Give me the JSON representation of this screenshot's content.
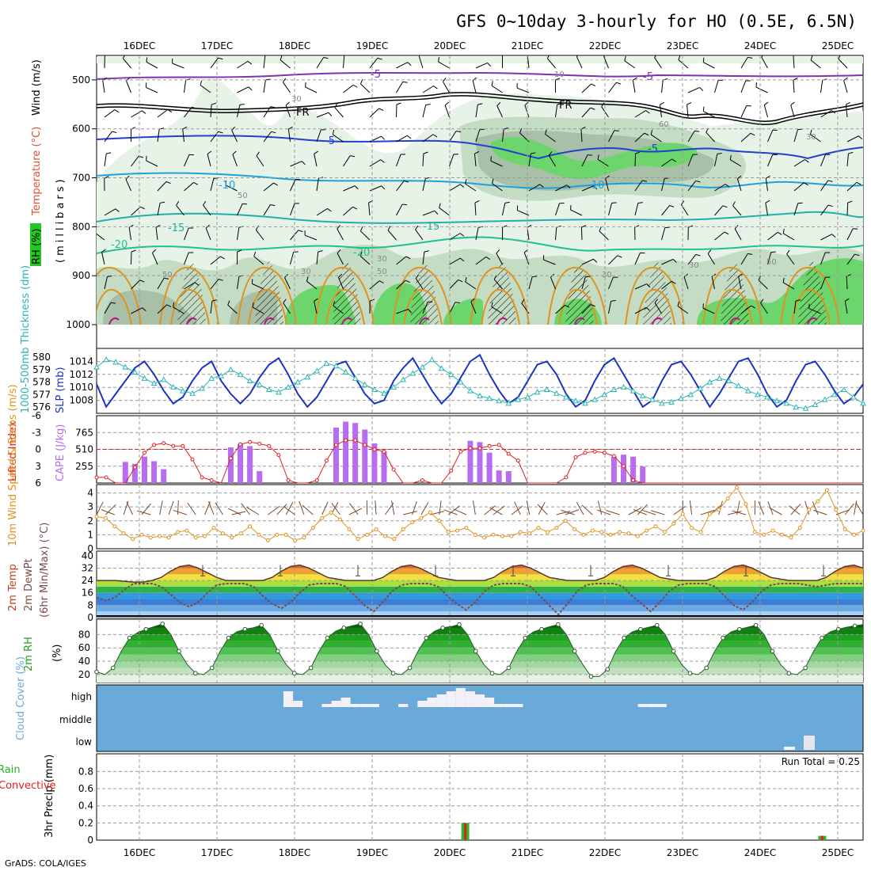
{
  "title": "GFS 0~10day 3-hourly for HO (0.5E, 6.5N)",
  "footer": "GrADS: COLA/IGES",
  "dates_top": [
    "16DEC",
    "17DEC",
    "18DEC",
    "19DEC",
    "20DEC",
    "21DEC",
    "22DEC",
    "23DEC",
    "24DEC",
    "25DEC"
  ],
  "dates_bottom": [
    "16DEC",
    "17DEC",
    "18DEC",
    "19DEC",
    "20DEC",
    "21DEC",
    "22DEC",
    "23DEC",
    "24DEC",
    "25DEC"
  ],
  "colors": {
    "rh1": "#e8f3e8",
    "rh2": "#c4dcc4",
    "rh3": "#a8c0a8",
    "rh4": "#6cd66c",
    "rh5": "#22c822",
    "slp": "#1a34c0",
    "thick": "#2ab4b4",
    "li": "#e02020",
    "cape": "#b86cf0",
    "wind": "#e0921e",
    "dew": "#7a4a4a",
    "cloud": "#6aaad8"
  },
  "chart_data": [
    {
      "panel": "cross-section",
      "type": "heatmap",
      "ylabel_rh": "RH (%)",
      "ylabel_temp": "Temperature (°C)",
      "ylabel_wind": "Wind (m/s)",
      "ylabel_units": "(millibars)",
      "yticks": [
        "500",
        "600",
        "700",
        "800",
        "900",
        "1000"
      ],
      "ylim": [
        1000,
        450
      ],
      "temp_labels": [
        "-5",
        "-5",
        "-5",
        "-5",
        "-10",
        "-10",
        "-15",
        "-15",
        "-20",
        "-20"
      ],
      "freezing_labels": [
        "FR",
        "FR"
      ],
      "rh_labels": [
        "10",
        "30",
        "50",
        "30",
        "30",
        "50",
        "50",
        "30",
        "30",
        "50",
        "60",
        "30"
      ]
    },
    {
      "panel": "slp-thickness",
      "type": "line",
      "ylabel_left": "1000-500mb Thickness (dm)",
      "ylabel_right": "SLP (mb)",
      "thick_ticks": [
        "580",
        "579",
        "578",
        "577",
        "576"
      ],
      "slp_ticks": [
        "1014",
        "1012",
        "1010",
        "1008"
      ],
      "slp_values": [
        1010.5,
        1007,
        1009,
        1011,
        1013,
        1014,
        1012,
        1009.5,
        1007.5,
        1008.5,
        1011,
        1013,
        1014,
        1011,
        1009,
        1007.5,
        1009,
        1011.5,
        1013.5,
        1014.5,
        1012,
        1009,
        1007,
        1008.5,
        1011,
        1013.5,
        1014,
        1011.5,
        1009,
        1007.5,
        1008,
        1011,
        1013,
        1014.5,
        1012,
        1009.5,
        1007.5,
        1009,
        1011.5,
        1014,
        1015,
        1012,
        1009.5,
        1007.5,
        1008.5,
        1011,
        1013.5,
        1014,
        1012,
        1009,
        1007,
        1008,
        1011,
        1013.5,
        1014.5,
        1012,
        1009.5,
        1007,
        1008,
        1011,
        1013.5,
        1014,
        1012,
        1009.5,
        1007,
        1009,
        1011.5,
        1014,
        1014.5,
        1012,
        1009,
        1007,
        1008,
        1011,
        1013.5,
        1014,
        1012,
        1009.5,
        1007.5,
        1008.5,
        1010.5
      ],
      "thick_values": [
        579.2,
        579.8,
        579.6,
        579.2,
        578.8,
        578.3,
        577.9,
        578.2,
        577.6,
        577.3,
        577.1,
        577.5,
        578.3,
        578.5,
        579.0,
        578.6,
        578.1,
        577.8,
        577.4,
        577.2,
        577.6,
        578.0,
        578.4,
        578.9,
        579.5,
        579.3,
        578.8,
        578.3,
        577.8,
        577.4,
        577.1,
        577.6,
        578.2,
        578.7,
        579.2,
        579.8,
        579.1,
        578.6,
        578.0,
        577.3,
        576.9,
        576.7,
        576.5,
        576.3,
        576.6,
        576.8,
        577.2,
        577.4,
        577.1,
        576.8,
        576.5,
        576.3,
        576.6,
        577.0,
        577.4,
        577.6,
        577.3,
        576.9,
        576.6,
        576.3,
        576.4,
        576.7,
        577.0,
        577.5,
        578.0,
        578.3,
        578.1,
        577.7,
        577.3,
        577.0,
        576.8,
        576.5,
        576.3,
        576.0,
        575.9,
        576.2,
        576.6,
        577.0,
        577.4,
        576.8,
        576.3
      ]
    },
    {
      "panel": "cape-li",
      "type": "bar",
      "ylabel_left": "Lifted Index",
      "ylabel_right": "CAPE (J/kg)",
      "li_ticks": [
        "-6",
        "-3",
        "0",
        "3",
        "6"
      ],
      "cape_ticks": [
        "765",
        "510",
        "255"
      ],
      "cape_values": [
        0,
        0,
        0,
        320,
        290,
        400,
        330,
        210,
        0,
        0,
        0,
        0,
        0,
        0,
        540,
        590,
        560,
        180,
        0,
        0,
        0,
        0,
        0,
        0,
        0,
        840,
        930,
        910,
        810,
        600,
        480,
        0,
        0,
        0,
        0,
        0,
        0,
        0,
        0,
        640,
        620,
        460,
        190,
        180,
        0,
        0,
        0,
        0,
        0,
        0,
        0,
        0,
        0,
        0,
        400,
        430,
        400,
        250,
        0,
        0,
        0,
        0,
        0,
        0,
        0,
        0,
        0,
        0,
        0,
        0,
        0,
        0,
        0,
        0,
        0,
        0,
        0,
        0,
        0,
        0,
        0
      ],
      "li_values": [
        5.0,
        5.0,
        6.0,
        6.0,
        3.2,
        0.6,
        -0.8,
        -1.1,
        -0.6,
        -0.6,
        1.8,
        5.0,
        5.5,
        6.0,
        1.6,
        -0.9,
        -1.3,
        -1.0,
        -0.6,
        1.0,
        5.5,
        6.0,
        6.0,
        5.5,
        2.0,
        -0.8,
        -1.6,
        -1.6,
        -0.8,
        0.0,
        0.4,
        3.6,
        6.0,
        6.0,
        5.5,
        6.0,
        6.0,
        3.8,
        0.4,
        -0.2,
        -0.2,
        -0.6,
        -0.8,
        0.8,
        2.0,
        6.0,
        6.0,
        6.0,
        6.0,
        5.0,
        1.4,
        0.6,
        0.4,
        0.6,
        1.2,
        3.0,
        5.5,
        6.0,
        6.0,
        6.0,
        6.0,
        6.0,
        6.0,
        6.0,
        6.0,
        6.0,
        6.0,
        6.0,
        6.0,
        6.0,
        6.0,
        6.0,
        6.0,
        6.0,
        6.0,
        6.0,
        6.0,
        6.0,
        6.0,
        6.0,
        6.0
      ]
    },
    {
      "panel": "wind10m",
      "type": "line",
      "ylabel": "10m Wind Speed & Barbs (m/s)",
      "yticks": [
        "4",
        "3",
        "2",
        "1",
        "0"
      ],
      "ylim": [
        0,
        4.6
      ],
      "values": [
        2.3,
        2.2,
        1.6,
        1.1,
        0.7,
        1.0,
        0.8,
        0.9,
        0.8,
        1.2,
        1.3,
        0.8,
        0.9,
        1.5,
        1.1,
        0.8,
        1.1,
        1.6,
        1.0,
        0.6,
        1.0,
        1.0,
        0.6,
        0.8,
        1.5,
        2.2,
        2.6,
        2.1,
        1.4,
        0.7,
        1.0,
        1.4,
        0.9,
        0.7,
        1.4,
        1.9,
        2.2,
        2.6,
        2.0,
        1.2,
        1.3,
        1.5,
        1.0,
        0.8,
        1.0,
        0.9,
        0.9,
        1.2,
        1.1,
        1.5,
        1.2,
        1.5,
        2.0,
        1.4,
        1.0,
        1.3,
        1.2,
        1.0,
        1.2,
        1.1,
        0.9,
        1.3,
        1.6,
        1.2,
        1.8,
        2.5,
        1.5,
        1.2,
        2.5,
        2.8,
        3.6,
        4.4,
        3.2,
        1.2,
        1.0,
        1.3,
        1.0,
        0.8,
        1.5,
        2.8,
        3.4,
        4.2,
        2.8,
        1.4,
        1.0,
        1.3
      ]
    },
    {
      "panel": "temp2m",
      "type": "area",
      "ylabel": "2m Temp 2m DewPt (6hr Min/Max) (°C)",
      "yticks": [
        "40",
        "32",
        "24",
        "16",
        "8",
        "0"
      ],
      "ylim": [
        0,
        40
      ],
      "temp_values": [
        24,
        24,
        24,
        23.5,
        23,
        23,
        24,
        26,
        30,
        33,
        34,
        32,
        29,
        26,
        24,
        24,
        24,
        24,
        24,
        26,
        30,
        33,
        34,
        32,
        29,
        26,
        25,
        24,
        24,
        24,
        24,
        26,
        30,
        33,
        34,
        32,
        29,
        26,
        25,
        24,
        24,
        24,
        24,
        26,
        30,
        33,
        34,
        32,
        29,
        26,
        25,
        24,
        24,
        24,
        24,
        26,
        30,
        33,
        34,
        32,
        29,
        26,
        25,
        24,
        24,
        24,
        24,
        26,
        30,
        33,
        34,
        32,
        29,
        26,
        25,
        24,
        24,
        24,
        24,
        26,
        30,
        33,
        34,
        32
      ],
      "dew_values": [
        13,
        11,
        13,
        18,
        22,
        22,
        22,
        20,
        15,
        10,
        7,
        10,
        16,
        21,
        22,
        22,
        22,
        20,
        14,
        9,
        6,
        10,
        16,
        21,
        22,
        22,
        22,
        20,
        14,
        8,
        4,
        10,
        17,
        21,
        22,
        22,
        22,
        20,
        14,
        9,
        5,
        10,
        17,
        21,
        22,
        22,
        22,
        20,
        14,
        8,
        2,
        9,
        17,
        21,
        22,
        22,
        22,
        20,
        14,
        9,
        4,
        10,
        17,
        21,
        22,
        22,
        22,
        20,
        14,
        8,
        5,
        10,
        17,
        21,
        22,
        22,
        22,
        21,
        20,
        21,
        22,
        22,
        22,
        22
      ]
    },
    {
      "panel": "rh2m",
      "type": "area",
      "ylabel": "2m RH (%)",
      "yticks": [
        "80",
        "60",
        "40",
        "20"
      ],
      "ylim": [
        15,
        100
      ],
      "values": [
        24,
        20,
        30,
        55,
        75,
        83,
        88,
        92,
        96,
        80,
        55,
        35,
        22,
        20,
        30,
        55,
        75,
        84,
        88,
        90,
        94,
        80,
        55,
        35,
        22,
        20,
        30,
        55,
        75,
        85,
        90,
        93,
        96,
        80,
        55,
        35,
        22,
        20,
        30,
        55,
        75,
        85,
        90,
        92,
        95,
        80,
        55,
        35,
        22,
        20,
        30,
        55,
        75,
        84,
        88,
        92,
        95,
        80,
        55,
        35,
        17,
        17,
        28,
        55,
        75,
        84,
        88,
        91,
        94,
        80,
        55,
        35,
        22,
        20,
        30,
        55,
        75,
        84,
        88,
        91,
        94,
        80,
        55,
        35,
        22,
        20,
        30,
        55,
        75,
        84,
        88,
        91,
        93,
        95
      ]
    },
    {
      "panel": "cloud",
      "type": "bar",
      "ylabel": "Cloud Cover (%)",
      "yticks": [
        "high",
        "middle",
        "low"
      ],
      "high_values": [
        0,
        0,
        0,
        0,
        0,
        0,
        0,
        0,
        0,
        0,
        0,
        0,
        0,
        0,
        0,
        0,
        0,
        0,
        0,
        0,
        5,
        2,
        0,
        0,
        1,
        2,
        3,
        1,
        1,
        1,
        0,
        0,
        1,
        0,
        2,
        3,
        4,
        5,
        6,
        5,
        4,
        3,
        1,
        1,
        1,
        0,
        0,
        0,
        0,
        0,
        0,
        0,
        0,
        0,
        0,
        0,
        0,
        1,
        1,
        1,
        0,
        0,
        0,
        0,
        0,
        0,
        0,
        0,
        0,
        0,
        0,
        0,
        0,
        0,
        0,
        0,
        0,
        0,
        0,
        0,
        0
      ],
      "low_values": [
        0,
        0,
        0,
        0,
        0,
        0,
        0,
        0,
        0,
        0,
        0,
        0,
        0,
        0,
        0,
        0,
        0,
        0,
        0,
        0,
        0,
        0,
        0,
        0,
        0,
        0,
        0,
        0,
        0,
        0,
        0,
        0,
        0,
        0,
        0,
        0,
        0,
        0,
        0,
        0,
        0,
        0,
        0,
        0,
        0,
        0,
        0,
        0,
        0,
        0,
        0,
        0,
        0,
        0,
        0,
        0,
        0,
        0,
        0,
        0,
        0,
        0,
        0,
        0,
        0,
        0,
        0,
        0,
        0,
        0,
        0,
        0,
        0,
        0,
        0,
        0,
        0,
        0,
        0,
        0,
        0
      ]
    },
    {
      "panel": "precip",
      "type": "bar",
      "ylabel": "3hr Precip (mm)",
      "ylabel_total": "Total / Rain",
      "ylabel_conv": "Convective",
      "run_total": "Run Total = 0.25",
      "yticks": [
        "0.8",
        "0.6",
        "0.4",
        "0.2",
        "0"
      ],
      "ylim": [
        0,
        1.0
      ],
      "bars": [
        {
          "day": 4.2,
          "value": 0.2
        },
        {
          "day": 8.8,
          "value": 0.05
        }
      ]
    }
  ]
}
